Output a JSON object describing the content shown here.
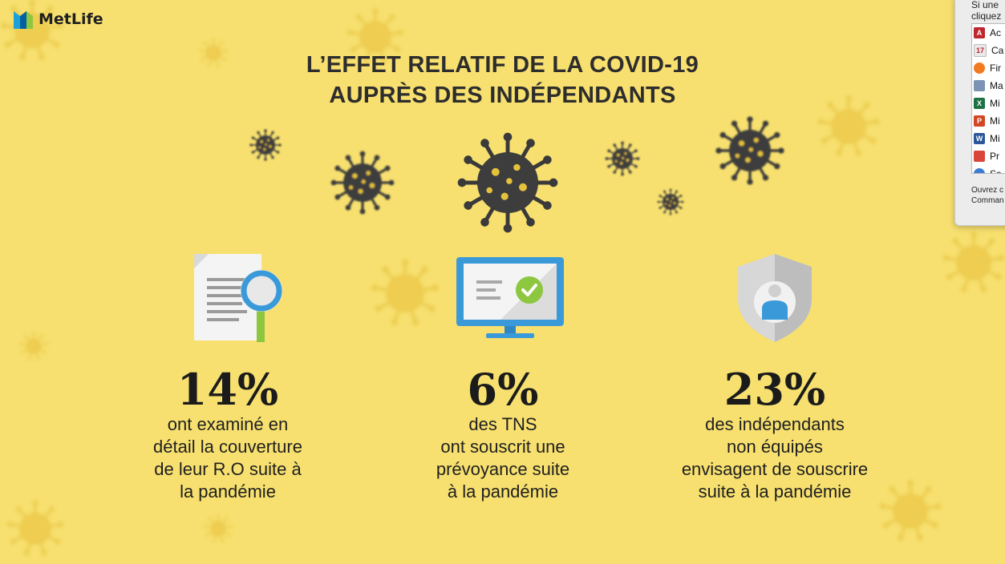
{
  "brand": {
    "name": "MetLife",
    "logo_icon": "metlife-logo-icon"
  },
  "title": {
    "line1": "L’EFFET RELATIF DE LA COVID-19",
    "line2": "AUPRÈS DES INDÉPENDANTS"
  },
  "stats": [
    {
      "value": "14%",
      "icon": "document-search-icon",
      "desc": [
        "ont examiné en",
        "détail la couverture",
        "de leur R.O suite à",
        "la pandémie"
      ]
    },
    {
      "value": "6%",
      "icon": "monitor-check-icon",
      "desc": [
        "des TNS",
        "ont souscrit une",
        "prévoyance suite",
        "à la pandémie"
      ]
    },
    {
      "value": "23%",
      "icon": "shield-user-icon",
      "desc": [
        "des indépendants",
        "non équipés",
        "envisagent de souscrire",
        "suite à la pandémie"
      ]
    }
  ],
  "dialog": {
    "hint_line1": "Si une",
    "hint_line2": "cliquez",
    "apps": [
      {
        "label": "Ac",
        "icon": "acrobat-icon",
        "color": "#c0262d",
        "glyph": "A"
      },
      {
        "label": "Ca",
        "icon": "calendar-icon",
        "color": "#e9e9e9",
        "glyph": "17"
      },
      {
        "label": "Fir",
        "icon": "firefox-icon",
        "color": "#f27b21",
        "glyph": ""
      },
      {
        "label": "Ma",
        "icon": "preview-icon",
        "color": "#7b93b5",
        "glyph": ""
      },
      {
        "label": "Mi",
        "icon": "excel-icon",
        "color": "#1e7145",
        "glyph": "X"
      },
      {
        "label": "Mi",
        "icon": "powerpoint-icon",
        "color": "#d24726",
        "glyph": "P"
      },
      {
        "label": "Mi",
        "icon": "word-icon",
        "color": "#2b579a",
        "glyph": "W"
      },
      {
        "label": "Pr",
        "icon": "app-icon",
        "color": "#d9453a",
        "glyph": ""
      },
      {
        "label": "Sa",
        "icon": "safari-icon",
        "color": "#3b7bd3",
        "glyph": ""
      }
    ],
    "footer_line1": "Ouvrez c",
    "footer_line2": "Comman"
  }
}
